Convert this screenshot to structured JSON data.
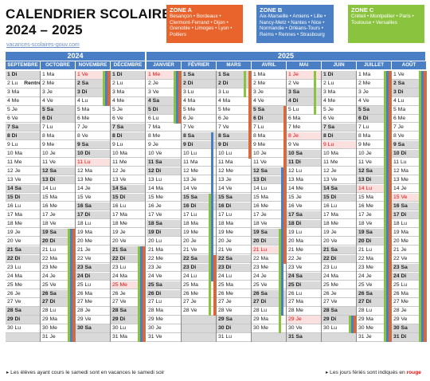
{
  "title_line1": "CALENDRIER SCOLAIRE",
  "title_line2": "2024 – 2025",
  "site": "vacances-scolaires-gouv.com",
  "zones": [
    {
      "name": "ZONE A",
      "text": "Besançon • Bordeaux • Clermont-Ferrand • Dijon • Grenoble • Limoges • Lyon • Poitiers"
    },
    {
      "name": "ZONE B",
      "text": "Aix-Marseille • Amiens • Lille • Nancy-Metz • Nantes • Nice • Normandie • Orléans-Tours • Reims • Rennes • Strasbourg"
    },
    {
      "name": "ZONE C",
      "text": "Créteil • Montpellier • Paris • Toulouse • Versailles"
    }
  ],
  "years": [
    "2024",
    "2025"
  ],
  "months": [
    "SEPTEMBRE",
    "OCTOBRE",
    "NOVEMBRE",
    "DÉCEMBRE",
    "JANVIER",
    "FÉVRIER",
    "MARS",
    "AVRIL",
    "MAI",
    "JUIN",
    "JUILLET",
    "AOÛT"
  ],
  "rentree_label": "Rentrée",
  "footer_left": "Les élèves ayant cours le samedi sont en vacances le samedi soir",
  "footer_right_prefix": "Les jours fériés sont indiqués en",
  "footer_right_red": "rouge",
  "colors": {
    "zone_a": "#e8642c",
    "zone_b": "#4a7fc5",
    "zone_c": "#8ac43e",
    "holiday": "#dd1111"
  },
  "calendar": {
    "first_weekday": [
      0,
      2,
      5,
      0,
      3,
      6,
      6,
      2,
      4,
      0,
      2,
      5
    ],
    "days_in_month": [
      30,
      31,
      30,
      31,
      31,
      28,
      31,
      30,
      31,
      30,
      31,
      31
    ],
    "day_abbr": [
      "Di",
      "Lu",
      "Ma",
      "Me",
      "Je",
      "Ve",
      "Sa"
    ],
    "public_holidays": [
      [
        2,
        1
      ],
      [
        2,
        11
      ],
      [
        3,
        25
      ],
      [
        4,
        1
      ],
      [
        7,
        21
      ],
      [
        8,
        1
      ],
      [
        8,
        8
      ],
      [
        8,
        29
      ],
      [
        9,
        9
      ],
      [
        10,
        14
      ],
      [
        11,
        15
      ]
    ]
  }
}
